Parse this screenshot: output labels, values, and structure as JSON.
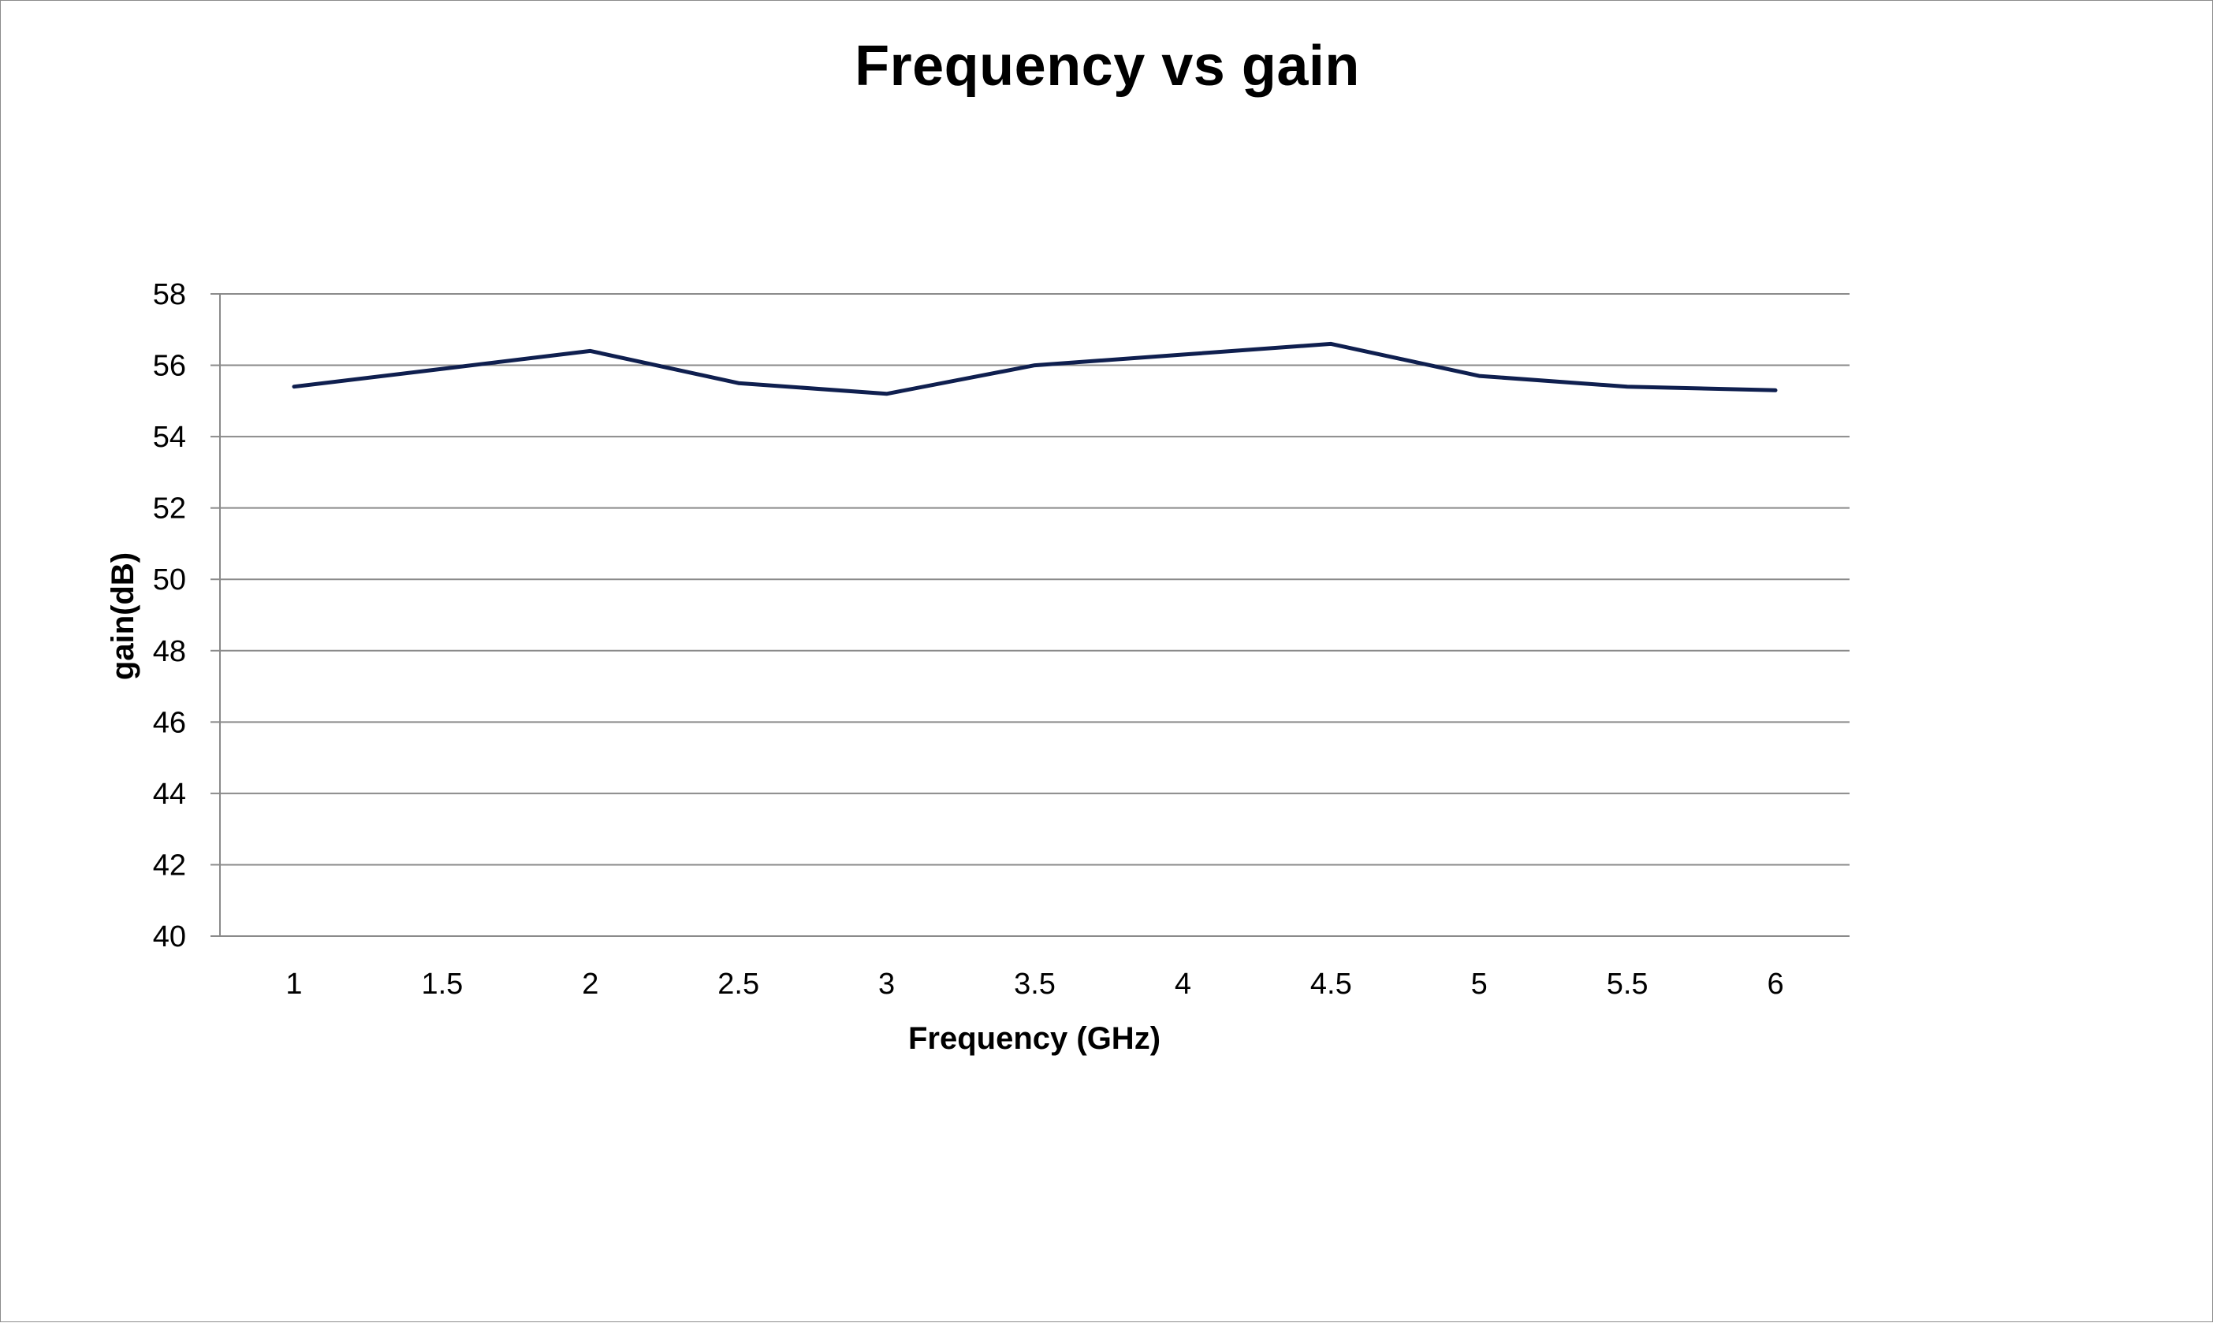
{
  "chart_data": {
    "type": "line",
    "title": "Frequency vs gain",
    "xlabel": "Frequency (GHz)",
    "ylabel": "gain(dB)",
    "categories": [
      "1",
      "1.5",
      "2",
      "2.5",
      "3",
      "3.5",
      "4",
      "4.5",
      "5",
      "5.5",
      "6"
    ],
    "series": [
      {
        "values": [
          55.4,
          55.9,
          56.4,
          55.5,
          55.2,
          56.0,
          56.3,
          56.6,
          55.7,
          55.4,
          55.3
        ],
        "color": "#0f1f4f"
      }
    ],
    "ylim": [
      40,
      58
    ],
    "yticks": [
      40,
      42,
      44,
      46,
      48,
      50,
      52,
      54,
      56,
      58
    ],
    "grid": true,
    "legend": "none"
  }
}
